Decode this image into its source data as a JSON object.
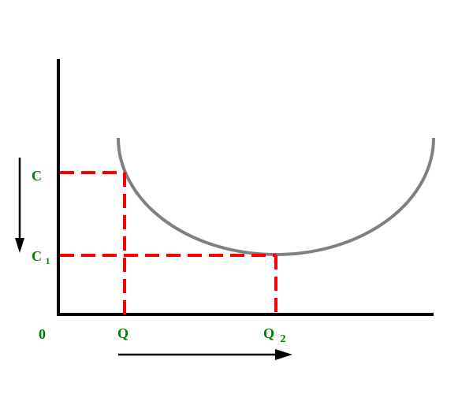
{
  "colors": {
    "axis": "#000000",
    "curve": "#808080",
    "guide": "#ff0000",
    "label": "#008000",
    "arrow": "#000000"
  },
  "labels": {
    "origin": "0",
    "c": "C",
    "c1_main": "C",
    "c1_sub": "1",
    "q": "Q",
    "q2_main": "Q",
    "q2_sub": "2"
  },
  "icons": {
    "down_arrow": "arrow-down-icon",
    "right_arrow": "arrow-right-icon"
  }
}
